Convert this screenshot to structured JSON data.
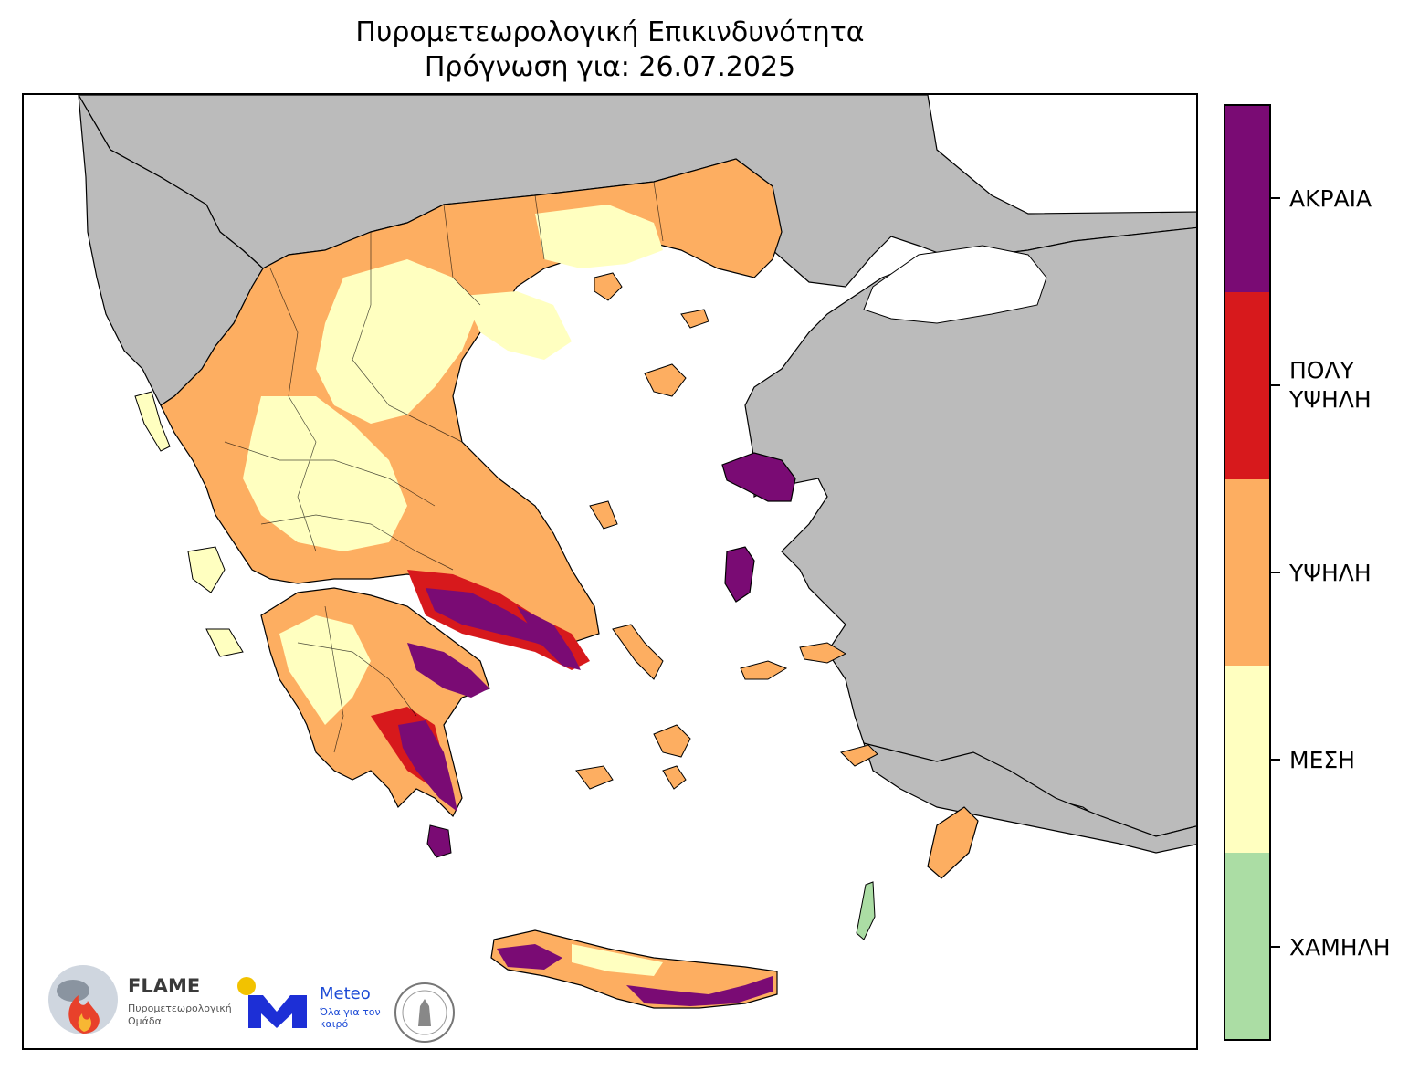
{
  "title": {
    "line1": "Πυρομετεωρολογική Επικινδυνότητα",
    "line2": "Πρόγνωση για: 26.07.2025"
  },
  "legend": {
    "levels": [
      {
        "label": "ΑΚΡΑΙΑ",
        "color": "#7a0b74"
      },
      {
        "label": "ΠΟΛΥ ΥΨΗΛΗ",
        "line1": "ΠΟΛΥ",
        "line2": "ΥΨΗΛΗ",
        "color": "#d7191c"
      },
      {
        "label": "ΥΨΗΛΗ",
        "color": "#fdae61"
      },
      {
        "label": "ΜΕΣΗ",
        "color": "#ffffc0"
      },
      {
        "label": "ΧΑΜΗΛΗ",
        "color": "#abdda4"
      }
    ]
  },
  "map": {
    "land_outside_color": "#bbbbbb",
    "sea_color": "#ffffff",
    "border_color": "#000000"
  },
  "logos": {
    "flame_name": "FLAME",
    "flame_sub": "Πυρομετεωρολογική Ομάδα",
    "meteo_name": "Meteo",
    "meteo_sub": "Όλα για τον καιρό"
  }
}
